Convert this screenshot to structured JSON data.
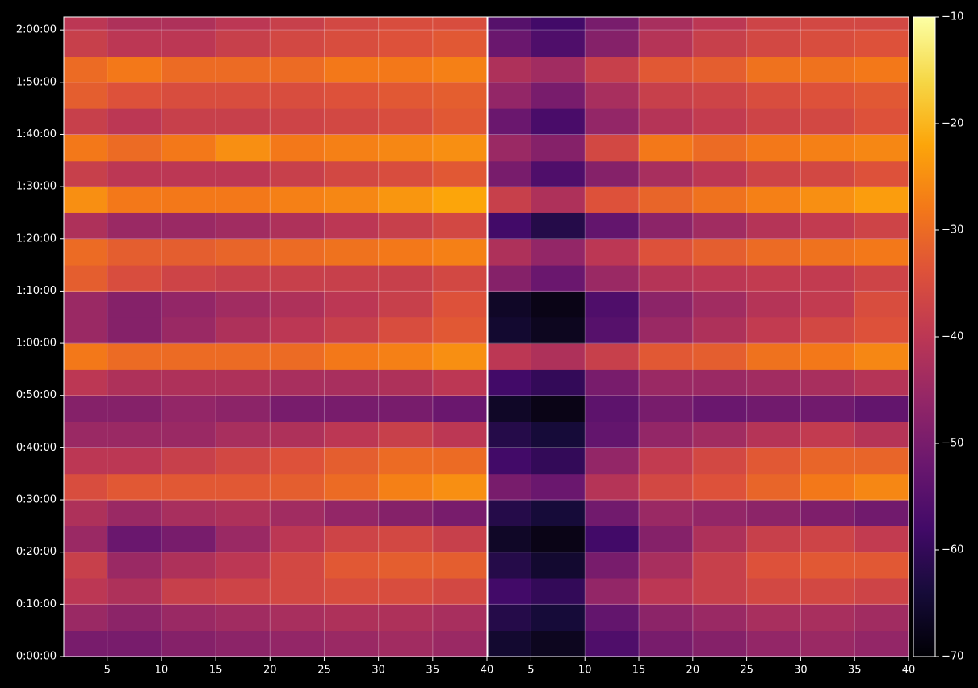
{
  "chart_data": {
    "type": "heatmap",
    "colormap": "inferno",
    "grid": true,
    "xlim": [
      1,
      40
    ],
    "xticks": [
      5,
      10,
      15,
      20,
      25,
      30,
      35,
      40
    ],
    "ylim": [
      0,
      7350
    ],
    "yticks": [
      {
        "value": 0,
        "label": "0:00:00"
      },
      {
        "value": 600,
        "label": "0:10:00"
      },
      {
        "value": 1200,
        "label": "0:20:00"
      },
      {
        "value": 1800,
        "label": "0:30:00"
      },
      {
        "value": 2400,
        "label": "0:40:00"
      },
      {
        "value": 3000,
        "label": "0:50:00"
      },
      {
        "value": 3600,
        "label": "1:00:00"
      },
      {
        "value": 4200,
        "label": "1:10:00"
      },
      {
        "value": 4800,
        "label": "1:20:00"
      },
      {
        "value": 5400,
        "label": "1:30:00"
      },
      {
        "value": 6000,
        "label": "1:40:00"
      },
      {
        "value": 6600,
        "label": "1:50:00"
      },
      {
        "value": 7200,
        "label": "2:00:00"
      }
    ],
    "x_bins": [
      1,
      5,
      10,
      15,
      20,
      25,
      30,
      35,
      40
    ],
    "y_bins": [
      0,
      300,
      600,
      900,
      1200,
      1500,
      1800,
      2100,
      2400,
      2700,
      3000,
      3300,
      3600,
      3900,
      4200,
      4500,
      4800,
      5100,
      5400,
      5700,
      6000,
      6300,
      6600,
      6900,
      7200,
      7350
    ],
    "clim": [
      -70,
      -10
    ],
    "cticks": [
      {
        "value": -70,
        "label": "−70"
      },
      {
        "value": -60,
        "label": "−60"
      },
      {
        "value": -50,
        "label": "−50"
      },
      {
        "value": -40,
        "label": "−40"
      },
      {
        "value": -30,
        "label": "−30"
      },
      {
        "value": -20,
        "label": "−20"
      },
      {
        "value": -10,
        "label": "−10"
      }
    ],
    "panels": [
      {
        "z": [
          [
            -50,
            -50,
            -48,
            -47,
            -46,
            -45,
            -44,
            -45
          ],
          [
            -45,
            -47,
            -45,
            -44,
            -43,
            -42,
            -42,
            -43
          ],
          [
            -40,
            -42,
            -38,
            -37,
            -36,
            -35,
            -35,
            -36
          ],
          [
            -38,
            -45,
            -42,
            -40,
            -36,
            -33,
            -32,
            -32
          ],
          [
            -45,
            -52,
            -50,
            -45,
            -40,
            -37,
            -36,
            -38
          ],
          [
            -42,
            -45,
            -43,
            -42,
            -44,
            -46,
            -48,
            -50
          ],
          [
            -35,
            -33,
            -33,
            -33,
            -32,
            -30,
            -27,
            -25
          ],
          [
            -40,
            -40,
            -38,
            -36,
            -34,
            -32,
            -30,
            -30
          ],
          [
            -45,
            -45,
            -45,
            -43,
            -42,
            -40,
            -38,
            -40
          ],
          [
            -48,
            -48,
            -46,
            -47,
            -50,
            -50,
            -50,
            -52
          ],
          [
            -40,
            -42,
            -42,
            -42,
            -43,
            -43,
            -42,
            -40
          ],
          [
            -28,
            -30,
            -30,
            -30,
            -30,
            -28,
            -27,
            -25
          ],
          [
            -45,
            -48,
            -45,
            -42,
            -40,
            -38,
            -35,
            -33
          ],
          [
            -45,
            -48,
            -46,
            -44,
            -42,
            -40,
            -38,
            -34
          ],
          [
            -32,
            -35,
            -37,
            -38,
            -38,
            -38,
            -38,
            -36
          ],
          [
            -30,
            -32,
            -32,
            -31,
            -30,
            -29,
            -28,
            -27
          ],
          [
            -42,
            -45,
            -45,
            -44,
            -42,
            -40,
            -38,
            -36
          ],
          [
            -25,
            -28,
            -28,
            -28,
            -27,
            -26,
            -24,
            -22
          ],
          [
            -38,
            -40,
            -40,
            -40,
            -38,
            -36,
            -35,
            -33
          ],
          [
            -28,
            -30,
            -28,
            -25,
            -28,
            -27,
            -26,
            -25
          ],
          [
            -38,
            -40,
            -38,
            -38,
            -37,
            -36,
            -35,
            -33
          ],
          [
            -32,
            -34,
            -35,
            -35,
            -35,
            -34,
            -33,
            -32
          ],
          [
            -30,
            -28,
            -30,
            -30,
            -30,
            -28,
            -28,
            -27
          ],
          [
            -38,
            -40,
            -40,
            -38,
            -36,
            -35,
            -34,
            -33
          ],
          [
            -40,
            -42,
            -42,
            -40,
            -38,
            -36,
            -35,
            -35
          ]
        ]
      },
      {
        "z": [
          [
            -65,
            -67,
            -56,
            -50,
            -48,
            -46,
            -45,
            -46
          ],
          [
            -62,
            -64,
            -53,
            -47,
            -45,
            -43,
            -43,
            -44
          ],
          [
            -58,
            -60,
            -46,
            -40,
            -38,
            -36,
            -36,
            -37
          ],
          [
            -62,
            -65,
            -50,
            -43,
            -38,
            -34,
            -33,
            -33
          ],
          [
            -66,
            -68,
            -58,
            -48,
            -42,
            -38,
            -37,
            -39
          ],
          [
            -62,
            -64,
            -51,
            -45,
            -46,
            -47,
            -49,
            -51
          ],
          [
            -50,
            -52,
            -41,
            -36,
            -34,
            -31,
            -28,
            -26
          ],
          [
            -58,
            -60,
            -46,
            -39,
            -36,
            -33,
            -31,
            -31
          ],
          [
            -62,
            -64,
            -53,
            -46,
            -44,
            -41,
            -39,
            -41
          ],
          [
            -66,
            -68,
            -54,
            -50,
            -52,
            -51,
            -51,
            -53
          ],
          [
            -58,
            -60,
            -50,
            -45,
            -45,
            -44,
            -43,
            -41
          ],
          [
            -40,
            -42,
            -38,
            -33,
            -32,
            -29,
            -28,
            -26
          ],
          [
            -65,
            -67,
            -55,
            -45,
            -42,
            -39,
            -36,
            -34
          ],
          [
            -66,
            -68,
            -56,
            -47,
            -44,
            -41,
            -39,
            -35
          ],
          [
            -48,
            -52,
            -45,
            -41,
            -40,
            -39,
            -39,
            -37
          ],
          [
            -42,
            -46,
            -40,
            -34,
            -32,
            -30,
            -29,
            -28
          ],
          [
            -58,
            -62,
            -53,
            -47,
            -44,
            -41,
            -39,
            -37
          ],
          [
            -38,
            -42,
            -34,
            -31,
            -29,
            -27,
            -25,
            -23
          ],
          [
            -50,
            -56,
            -48,
            -43,
            -40,
            -37,
            -36,
            -34
          ],
          [
            -45,
            -48,
            -36,
            -28,
            -30,
            -28,
            -27,
            -26
          ],
          [
            -52,
            -57,
            -46,
            -41,
            -39,
            -37,
            -36,
            -34
          ],
          [
            -46,
            -50,
            -43,
            -38,
            -37,
            -35,
            -34,
            -33
          ],
          [
            -42,
            -44,
            -38,
            -33,
            -32,
            -29,
            -29,
            -28
          ],
          [
            -52,
            -56,
            -48,
            -41,
            -38,
            -36,
            -35,
            -34
          ],
          [
            -55,
            -58,
            -50,
            -43,
            -40,
            -37,
            -36,
            -36
          ]
        ]
      }
    ]
  }
}
